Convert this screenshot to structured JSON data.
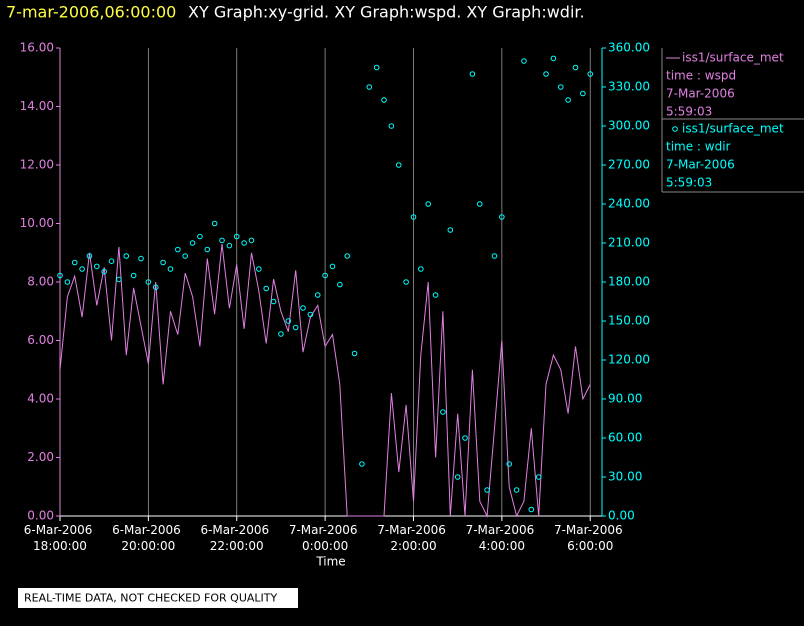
{
  "chart_data": {
    "type": "xy",
    "title": "7-mar-2006,06:00:00",
    "subtitle": "XY Graph:xy-grid.  XY Graph:wspd.  XY Graph:wdir.",
    "x_label": "Time",
    "footer": "REAL-TIME DATA, NOT CHECKED FOR QUALITY",
    "grid": "x",
    "xlim": [
      "2006-03-06T18:00",
      "2006-03-07T06:16"
    ],
    "xticks": [
      {
        "value": "2006-03-06T18:00",
        "label": "6-Mar-2006 18:00:00"
      },
      {
        "value": "2006-03-06T20:00",
        "label": "6-Mar-2006 20:00:00"
      },
      {
        "value": "2006-03-06T22:00",
        "label": "6-Mar-2006 22:00:00"
      },
      {
        "value": "2006-03-07T00:00",
        "label": "7-Mar-2006 0:00:00"
      },
      {
        "value": "2006-03-07T02:00",
        "label": "7-Mar-2006 2:00:00"
      },
      {
        "value": "2006-03-07T04:00",
        "label": "7-Mar-2006 4:00:00"
      },
      {
        "value": "2006-03-07T06:00",
        "label": "7-Mar-2006 6:00:00"
      }
    ],
    "ylim": [
      0,
      16
    ],
    "yticks": [
      {
        "value": 0,
        "label": "0.00"
      },
      {
        "value": 2,
        "label": "2.00"
      },
      {
        "value": 4,
        "label": "4.00"
      },
      {
        "value": 6,
        "label": "6.00"
      },
      {
        "value": 8,
        "label": "8.00"
      },
      {
        "value": 10,
        "label": "10.00"
      },
      {
        "value": 12,
        "label": "12.00"
      },
      {
        "value": 14,
        "label": "14.00"
      },
      {
        "value": 16,
        "label": "16.00"
      }
    ],
    "y2lim": [
      0,
      360
    ],
    "y2ticks": [
      {
        "value": 0,
        "label": "0.00"
      },
      {
        "value": 30,
        "label": "30.00"
      },
      {
        "value": 60,
        "label": "60.00"
      },
      {
        "value": 90,
        "label": "90.00"
      },
      {
        "value": 120,
        "label": "120.00"
      },
      {
        "value": 150,
        "label": "150.00"
      },
      {
        "value": 180,
        "label": "180.00"
      },
      {
        "value": 210,
        "label": "210.00"
      },
      {
        "value": 240,
        "label": "240.00"
      },
      {
        "value": 270,
        "label": "270.00"
      },
      {
        "value": 300,
        "label": "300.00"
      },
      {
        "value": 330,
        "label": "330.00"
      },
      {
        "value": 360,
        "label": "360.00"
      }
    ],
    "x": [
      "2006-03-06T18:00",
      "2006-03-06T18:10",
      "2006-03-06T18:20",
      "2006-03-06T18:30",
      "2006-03-06T18:40",
      "2006-03-06T18:50",
      "2006-03-06T19:00",
      "2006-03-06T19:10",
      "2006-03-06T19:20",
      "2006-03-06T19:30",
      "2006-03-06T19:40",
      "2006-03-06T19:50",
      "2006-03-06T20:00",
      "2006-03-06T20:10",
      "2006-03-06T20:20",
      "2006-03-06T20:30",
      "2006-03-06T20:40",
      "2006-03-06T20:50",
      "2006-03-06T21:00",
      "2006-03-06T21:10",
      "2006-03-06T21:20",
      "2006-03-06T21:30",
      "2006-03-06T21:40",
      "2006-03-06T21:50",
      "2006-03-06T22:00",
      "2006-03-06T22:10",
      "2006-03-06T22:20",
      "2006-03-06T22:30",
      "2006-03-06T22:40",
      "2006-03-06T22:50",
      "2006-03-06T23:00",
      "2006-03-06T23:10",
      "2006-03-06T23:20",
      "2006-03-06T23:30",
      "2006-03-06T23:40",
      "2006-03-06T23:50",
      "2006-03-07T00:00",
      "2006-03-07T00:10",
      "2006-03-07T00:20",
      "2006-03-07T00:30",
      "2006-03-07T00:40",
      "2006-03-07T00:50",
      "2006-03-07T01:00",
      "2006-03-07T01:10",
      "2006-03-07T01:20",
      "2006-03-07T01:30",
      "2006-03-07T01:40",
      "2006-03-07T01:50",
      "2006-03-07T02:00",
      "2006-03-07T02:10",
      "2006-03-07T02:20",
      "2006-03-07T02:30",
      "2006-03-07T02:40",
      "2006-03-07T02:50",
      "2006-03-07T03:00",
      "2006-03-07T03:10",
      "2006-03-07T03:20",
      "2006-03-07T03:30",
      "2006-03-07T03:40",
      "2006-03-07T03:50",
      "2006-03-07T04:00",
      "2006-03-07T04:10",
      "2006-03-07T04:20",
      "2006-03-07T04:30",
      "2006-03-07T04:40",
      "2006-03-07T04:50",
      "2006-03-07T05:00",
      "2006-03-07T05:10",
      "2006-03-07T05:20",
      "2006-03-07T05:30",
      "2006-03-07T05:40",
      "2006-03-07T05:50",
      "2006-03-07T06:00"
    ],
    "series": [
      {
        "name": "iss1/surface_met",
        "legend_lines": [
          "time : wspd",
          "7-Mar-2006",
          "5:59:03"
        ],
        "color": "#e080e0",
        "style": "line",
        "values": [
          5.0,
          7.5,
          8.2,
          6.8,
          9.0,
          7.2,
          8.5,
          6.0,
          9.2,
          5.5,
          7.8,
          6.5,
          5.2,
          8.0,
          4.5,
          7.0,
          6.2,
          8.3,
          7.5,
          5.8,
          8.8,
          6.9,
          9.3,
          7.1,
          8.6,
          6.4,
          9.0,
          7.7,
          5.9,
          8.1,
          7.0,
          6.3,
          8.4,
          5.6,
          6.8,
          7.2,
          5.8,
          6.2,
          4.5,
          0.0,
          0.0,
          0.0,
          0.0,
          0.0,
          0.0,
          4.2,
          1.5,
          3.8,
          0.5,
          5.5,
          8.0,
          2.0,
          7.0,
          0.0,
          3.5,
          0.0,
          5.0,
          0.5,
          0.0,
          3.0,
          6.0,
          1.0,
          0.0,
          0.5,
          3.0,
          0.0,
          4.5,
          5.5,
          5.0,
          3.5,
          5.8,
          4.0,
          4.5
        ]
      },
      {
        "name": "iss1/surface_met",
        "legend_lines": [
          "time : wdir",
          "7-Mar-2006",
          "5:59:03"
        ],
        "color": "#00ffff",
        "style": "markers",
        "axis": "y2",
        "values": [
          185,
          180,
          195,
          190,
          200,
          192,
          188,
          196,
          182,
          200,
          185,
          198,
          180,
          176,
          195,
          190,
          205,
          200,
          210,
          215,
          205,
          225,
          212,
          208,
          215,
          210,
          212,
          190,
          175,
          165,
          140,
          150,
          145,
          160,
          155,
          170,
          185,
          192,
          178,
          200,
          125,
          40,
          330,
          345,
          320,
          300,
          270,
          180,
          230,
          190,
          240,
          170,
          80,
          220,
          30,
          60,
          340,
          240,
          20,
          200,
          230,
          40,
          20,
          350,
          5,
          30,
          340,
          352,
          330,
          320,
          345,
          325,
          340
        ]
      }
    ]
  }
}
